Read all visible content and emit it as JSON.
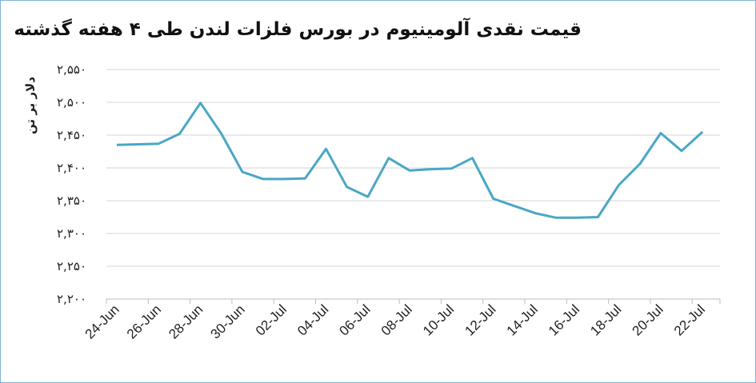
{
  "chart_data": {
    "type": "line",
    "title": "قیمت نقدی آلومینیوم در بورس فلزات لندن طی ۴ هفته گذشته",
    "ylabel": "دلار بر تن",
    "xlabel": "",
    "ylim": [
      2200,
      2550
    ],
    "y_ticks": [
      2200,
      2250,
      2300,
      2350,
      2400,
      2450,
      2500,
      2550
    ],
    "y_tick_labels": [
      "۲,۲۰۰",
      "۲,۲۵۰",
      "۲,۳۰۰",
      "۲,۳۵۰",
      "۲,۴۰۰",
      "۲,۴۵۰",
      "۲,۵۰۰",
      "۲,۵۵۰"
    ],
    "x_tick_labels": [
      "24-Jun",
      "26-Jun",
      "28-Jun",
      "30-Jun",
      "02-Jul",
      "04-Jul",
      "06-Jul",
      "08-Jul",
      "10-Jul",
      "12-Jul",
      "14-Jul",
      "16-Jul",
      "18-Jul",
      "20-Jul",
      "22-Jul"
    ],
    "grid": true,
    "line_color": "#4aa7c6",
    "series": [
      {
        "x": [
          "24-Jun",
          "25-Jun",
          "26-Jun",
          "27-Jun",
          "28-Jun",
          "29-Jun",
          "30-Jun",
          "01-Jul",
          "02-Jul",
          "03-Jul",
          "04-Jul",
          "05-Jul",
          "06-Jul",
          "07-Jul",
          "08-Jul",
          "09-Jul",
          "10-Jul",
          "11-Jul",
          "12-Jul",
          "13-Jul",
          "14-Jul",
          "15-Jul",
          "16-Jul",
          "17-Jul",
          "18-Jul",
          "19-Jul",
          "20-Jul",
          "21-Jul",
          "22-Jul"
        ],
        "values": [
          2435,
          2436,
          2437,
          2452,
          2499,
          2452,
          2394,
          2383,
          2383,
          2384,
          2429,
          2371,
          2356,
          2415,
          2396,
          2398,
          2399,
          2415,
          2353,
          2342,
          2331,
          2324,
          2324,
          2325,
          2374,
          2406,
          2453,
          2426,
          2455
        ]
      }
    ]
  }
}
